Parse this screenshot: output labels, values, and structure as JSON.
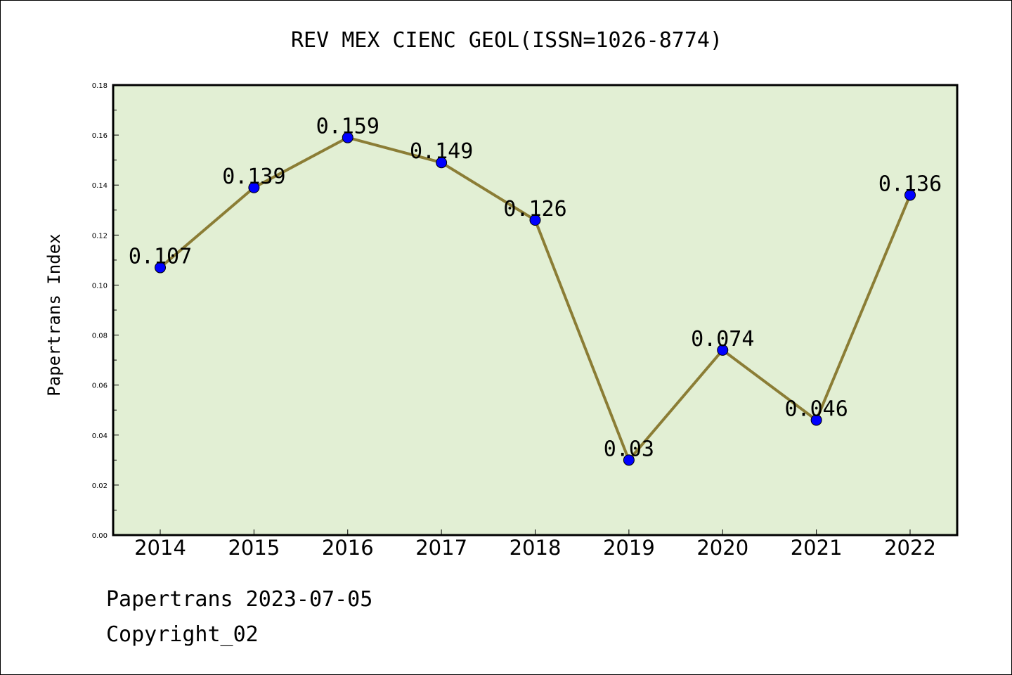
{
  "chart_data": {
    "type": "line",
    "title": "REV MEX CIENC GEOL(ISSN=1026-8774)",
    "xlabel": "",
    "ylabel": "Papertrans Index",
    "categories": [
      "2014",
      "2015",
      "2016",
      "2017",
      "2018",
      "2019",
      "2020",
      "2021",
      "2022"
    ],
    "values": [
      0.107,
      0.139,
      0.159,
      0.149,
      0.126,
      0.03,
      0.074,
      0.046,
      0.136
    ],
    "data_labels": [
      "0.107",
      "0.139",
      "0.159",
      "0.149",
      "0.126",
      "0.03",
      "0.074",
      "0.046",
      "0.136"
    ],
    "ylim": [
      0,
      0.18
    ],
    "yticks": [
      "0.00",
      "0.02",
      "0.04",
      "0.06",
      "0.08",
      "0.10",
      "0.12",
      "0.14",
      "0.16",
      "0.18"
    ],
    "grid": false,
    "colors": {
      "line": "#8b7d35",
      "marker": "#0000ff",
      "plot_background": "#e2efd4"
    }
  },
  "footer": {
    "date_line": "Papertrans 2023-07-05",
    "copyright": "Copyright_02"
  }
}
